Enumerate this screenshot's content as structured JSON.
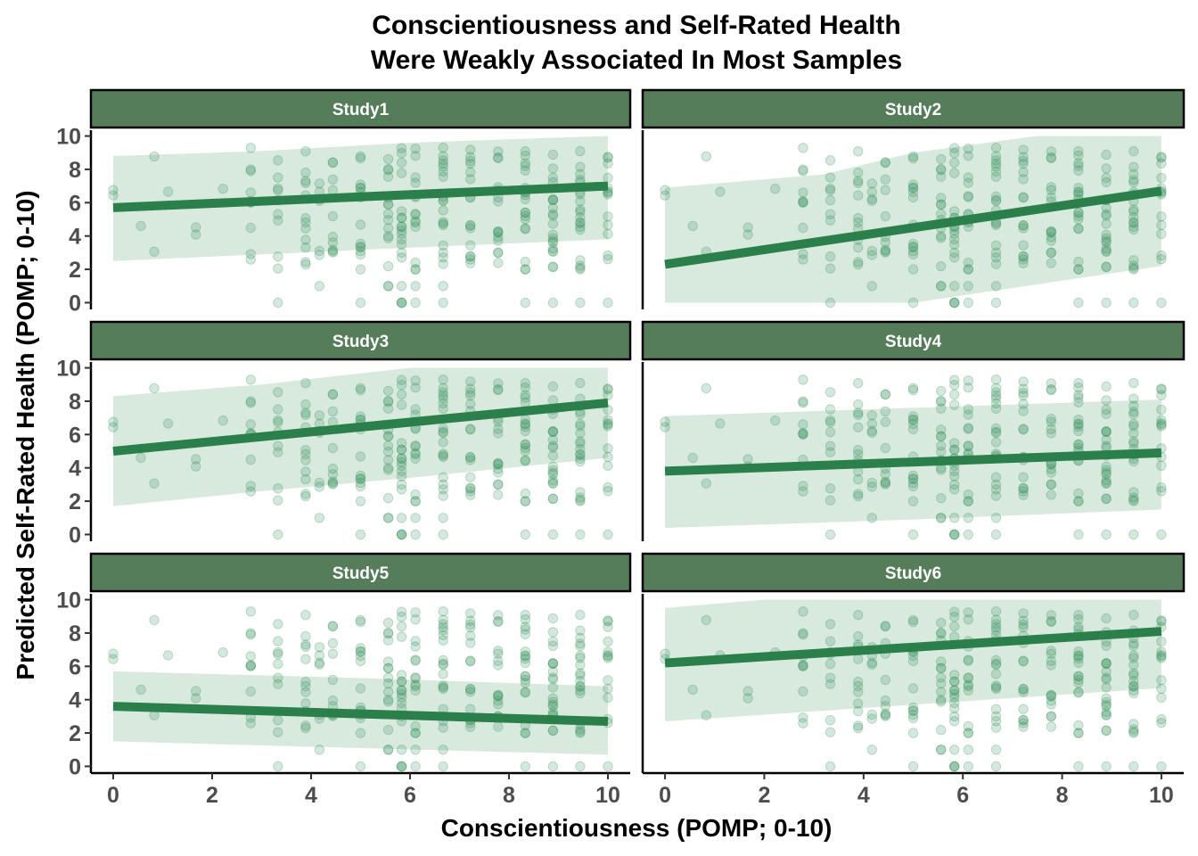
{
  "chart_data": {
    "type": "scatter",
    "title_lines": [
      "Conscientiousness and Self-Rated Health",
      "Were Weakly Associated In Most Samples"
    ],
    "xlabel": "Conscientiousness (POMP; 0-10)",
    "ylabel": "Predicted Self-Rated Health (POMP; 0-10)",
    "xlim": [
      -0.45,
      10.45
    ],
    "ylim": [
      -0.35,
      10.35
    ],
    "x_ticks": [
      0,
      2,
      4,
      6,
      8,
      10
    ],
    "y_ticks": [
      0,
      2,
      4,
      6,
      8,
      10
    ],
    "grid": false,
    "legend": "none",
    "colors": {
      "points": "#2e8b57",
      "line": "#2a7f4a",
      "ribbon": "#d6e8dc",
      "strip_fill": "#567d5a",
      "strip_border": "#000000",
      "strip_text": "#ffffff"
    },
    "point_x_values": [
      0,
      0.56,
      0.83,
      1.11,
      1.67,
      2.22,
      2.78,
      3.33,
      3.89,
      4.17,
      4.44,
      5,
      5.56,
      5.83,
      6.11,
      6.67,
      7.22,
      7.78,
      8.33,
      8.89,
      9.44,
      10
    ],
    "facets": [
      {
        "label": "Study1",
        "line": {
          "x": [
            0,
            10
          ],
          "y": [
            5.7,
            7.0
          ]
        },
        "ribbon": {
          "x": [
            0,
            3,
            6,
            10
          ],
          "lower": [
            2.5,
            2.9,
            3.3,
            3.8
          ],
          "upper": [
            8.8,
            9.1,
            9.6,
            10.0
          ]
        }
      },
      {
        "label": "Study2",
        "line": {
          "x": [
            0,
            10
          ],
          "y": [
            2.3,
            6.7
          ]
        },
        "ribbon": {
          "x": [
            0,
            3.2,
            5,
            7.5,
            10
          ],
          "lower": [
            0,
            0,
            0,
            1.1,
            2.2
          ],
          "upper": [
            6.9,
            7.7,
            9.0,
            10.0,
            10.0
          ]
        }
      },
      {
        "label": "Study3",
        "line": {
          "x": [
            0,
            10
          ],
          "y": [
            5.0,
            7.9
          ]
        },
        "ribbon": {
          "x": [
            0,
            3,
            6,
            10
          ],
          "lower": [
            1.7,
            2.6,
            3.4,
            4.6
          ],
          "upper": [
            8.3,
            9.0,
            10.0,
            10.0
          ]
        }
      },
      {
        "label": "Study4",
        "line": {
          "x": [
            0,
            10
          ],
          "y": [
            3.8,
            4.9
          ]
        },
        "ribbon": {
          "x": [
            0,
            5,
            10
          ],
          "lower": [
            0.4,
            0.9,
            1.5
          ],
          "upper": [
            7.1,
            7.6,
            8.1
          ]
        }
      },
      {
        "label": "Study5",
        "line": {
          "x": [
            0,
            10
          ],
          "y": [
            3.6,
            2.7
          ]
        },
        "ribbon": {
          "x": [
            0,
            5,
            10
          ],
          "lower": [
            1.5,
            1.1,
            0.7
          ],
          "upper": [
            5.7,
            5.3,
            4.8
          ]
        }
      },
      {
        "label": "Study6",
        "line": {
          "x": [
            0,
            10
          ],
          "y": [
            6.2,
            8.1
          ]
        },
        "ribbon": {
          "x": [
            0,
            2,
            5,
            10
          ],
          "lower": [
            2.7,
            3.1,
            3.7,
            4.7
          ],
          "upper": [
            9.5,
            10.0,
            10.0,
            10.0
          ]
        }
      }
    ]
  }
}
